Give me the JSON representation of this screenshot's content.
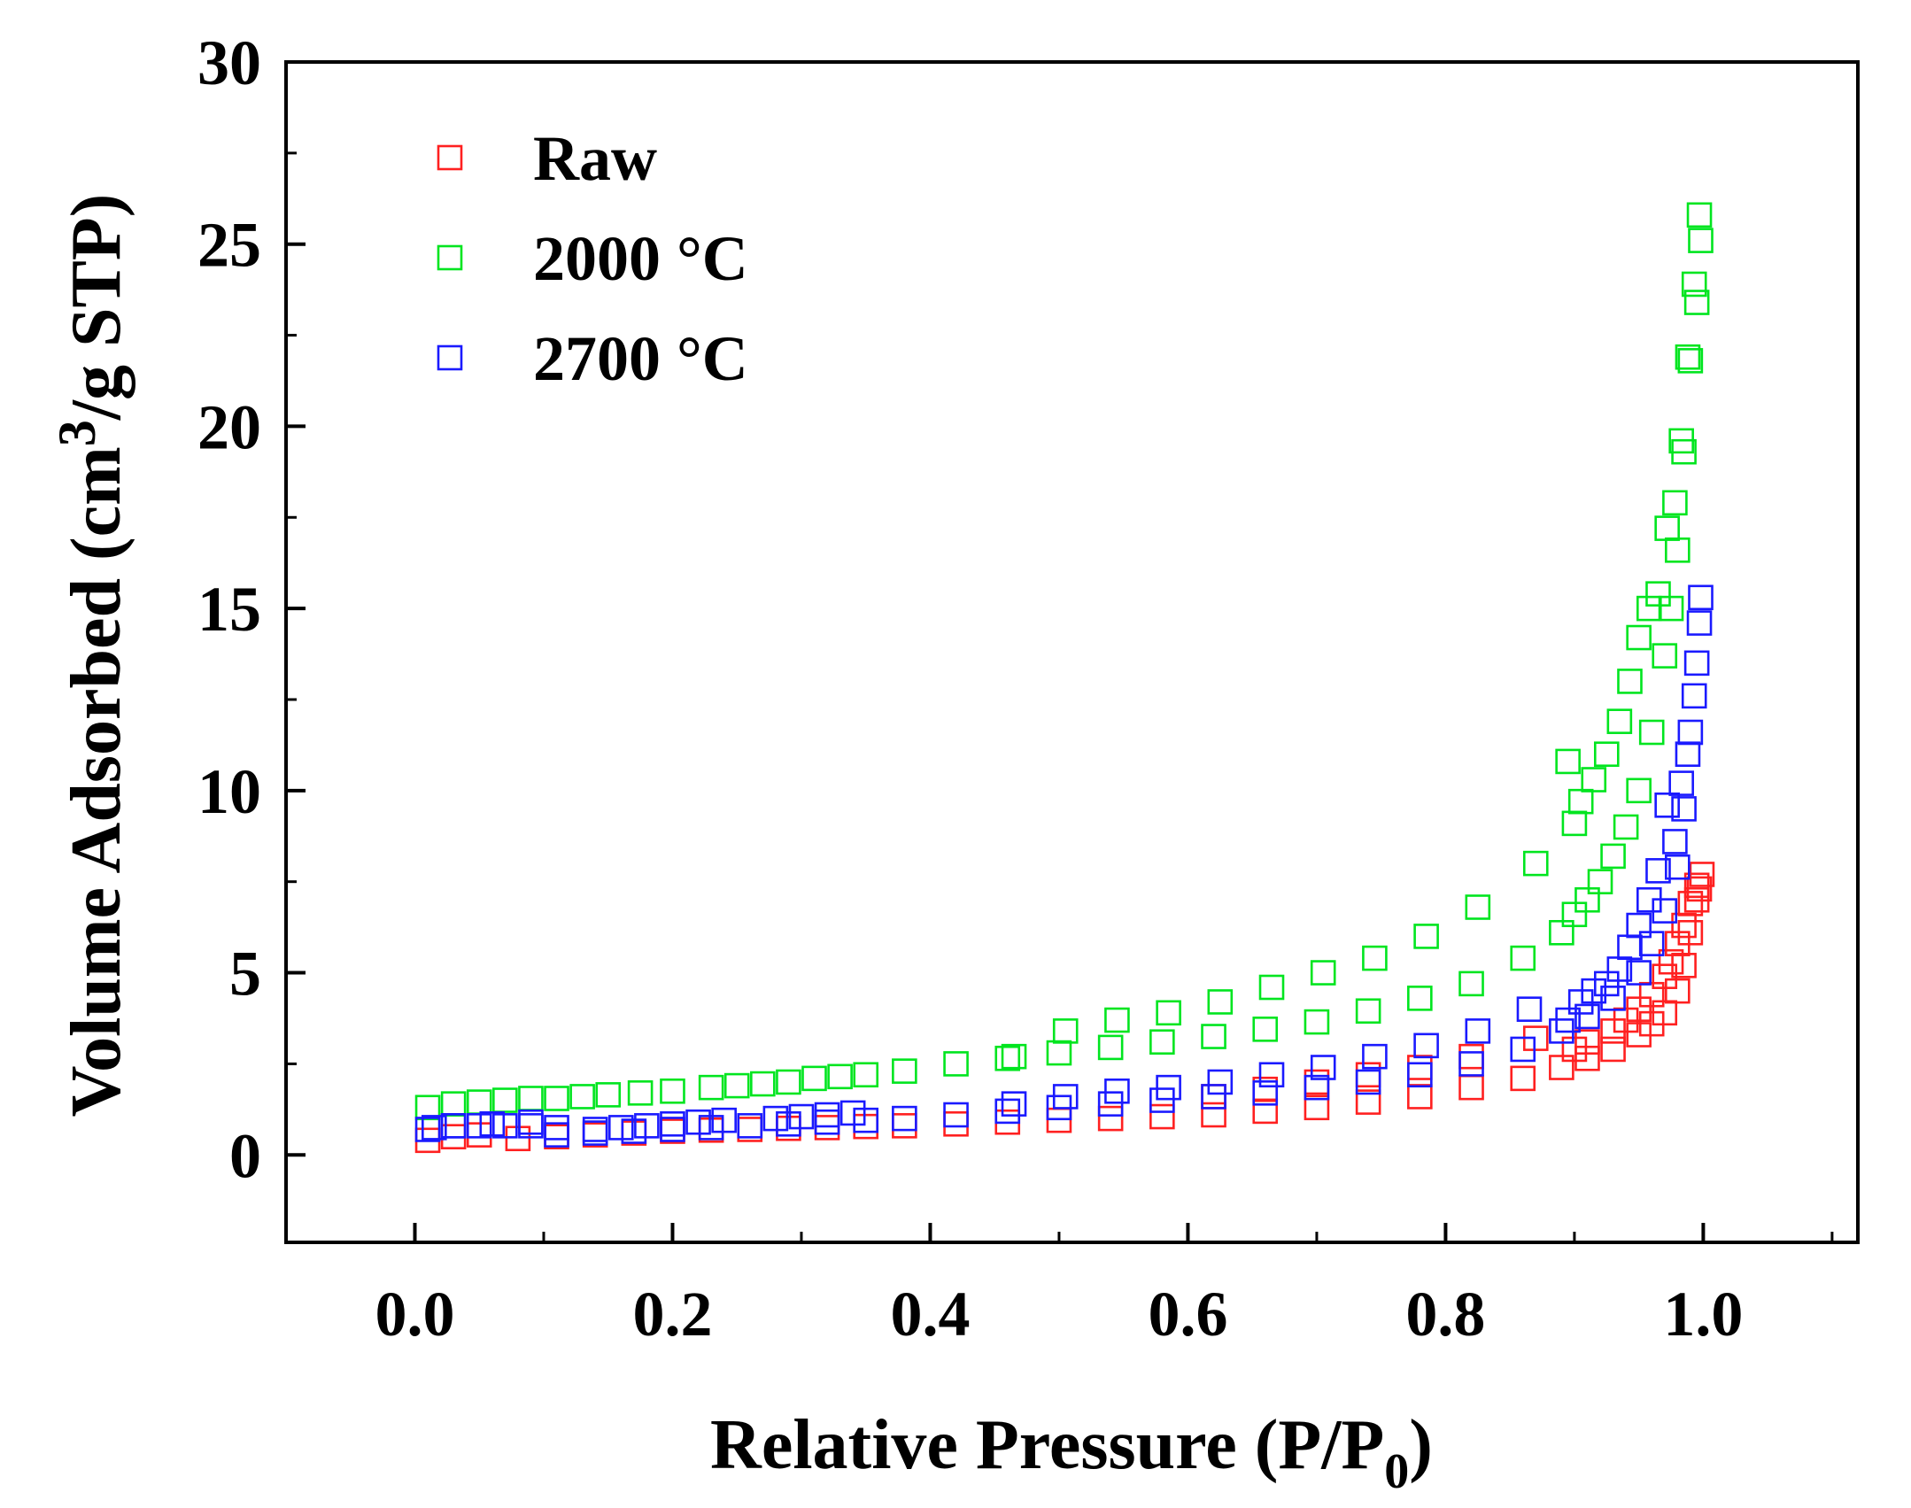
{
  "chart_data": {
    "type": "scatter",
    "title": "",
    "xlabel": "Relative Pressure (P/P",
    "xlabel_sub": "0",
    "xlabel_end": ")",
    "ylabel": "Volume Adsorbed (cm",
    "ylabel_sup": "3",
    "ylabel_end": "/g STP)",
    "xlim": [
      -0.1,
      1.12
    ],
    "ylim": [
      -2.4,
      30
    ],
    "xticks": [
      0.0,
      0.2,
      0.4,
      0.6,
      0.8,
      1.0
    ],
    "xtick_labels": [
      "0.0",
      "0.2",
      "0.4",
      "0.6",
      "0.8",
      "1.0"
    ],
    "yticks": [
      0,
      5,
      10,
      15,
      20,
      25,
      30
    ],
    "ytick_labels": [
      "0",
      "5",
      "10",
      "15",
      "20",
      "25",
      "30"
    ],
    "legend_position": "top-left",
    "series": [
      {
        "name": "Raw",
        "color": "#ff2020",
        "x": [
          0.01,
          0.03,
          0.05,
          0.08,
          0.11,
          0.14,
          0.17,
          0.2,
          0.23,
          0.26,
          0.29,
          0.32,
          0.35,
          0.38,
          0.42,
          0.46,
          0.5,
          0.54,
          0.58,
          0.62,
          0.66,
          0.7,
          0.74,
          0.78,
          0.82,
          0.86,
          0.89,
          0.91,
          0.93,
          0.95,
          0.96,
          0.97,
          0.98,
          0.985,
          0.99,
          0.995,
          0.997,
          0.999,
          0.995,
          0.99,
          0.985,
          0.98,
          0.975,
          0.97,
          0.96,
          0.95,
          0.94,
          0.93,
          0.91,
          0.9,
          0.87,
          0.82,
          0.78,
          0.74,
          0.7,
          0.66,
          0.62
        ],
        "y": [
          0.4,
          0.5,
          0.55,
          0.45,
          0.5,
          0.55,
          0.6,
          0.65,
          0.68,
          0.7,
          0.73,
          0.75,
          0.78,
          0.8,
          0.85,
          0.9,
          0.95,
          1.0,
          1.05,
          1.1,
          1.2,
          1.3,
          1.45,
          1.6,
          1.85,
          2.1,
          2.4,
          2.65,
          2.9,
          3.3,
          3.6,
          3.9,
          4.5,
          5.2,
          6.1,
          7.0,
          7.3,
          7.7,
          7.4,
          6.9,
          6.3,
          5.8,
          5.3,
          4.9,
          4.4,
          4.0,
          3.7,
          3.4,
          3.1,
          2.9,
          3.2,
          2.7,
          2.4,
          2.2,
          2.0,
          1.8,
          1.6
        ]
      },
      {
        "name": "2000 °C",
        "color": "#00e51f",
        "x": [
          0.01,
          0.03,
          0.05,
          0.07,
          0.09,
          0.11,
          0.13,
          0.15,
          0.175,
          0.2,
          0.23,
          0.25,
          0.27,
          0.29,
          0.31,
          0.33,
          0.35,
          0.38,
          0.42,
          0.46,
          0.5,
          0.54,
          0.58,
          0.62,
          0.66,
          0.7,
          0.74,
          0.78,
          0.82,
          0.86,
          0.89,
          0.9,
          0.91,
          0.92,
          0.93,
          0.94,
          0.95,
          0.96,
          0.97,
          0.975,
          0.98,
          0.985,
          0.99,
          0.995,
          0.998,
          0.997,
          0.993,
          0.988,
          0.983,
          0.978,
          0.972,
          0.965,
          0.958,
          0.95,
          0.943,
          0.935,
          0.925,
          0.915,
          0.905,
          0.9,
          0.895,
          0.87,
          0.825,
          0.785,
          0.745,
          0.705,
          0.665,
          0.625,
          0.585,
          0.545,
          0.505,
          0.465
        ],
        "y": [
          1.3,
          1.4,
          1.45,
          1.5,
          1.55,
          1.55,
          1.6,
          1.65,
          1.7,
          1.75,
          1.85,
          1.9,
          1.95,
          2.0,
          2.1,
          2.15,
          2.2,
          2.3,
          2.5,
          2.65,
          2.8,
          2.95,
          3.1,
          3.25,
          3.45,
          3.65,
          3.95,
          4.3,
          4.7,
          5.4,
          6.1,
          6.6,
          7.0,
          7.5,
          8.2,
          9.0,
          10.0,
          11.6,
          13.7,
          15.0,
          16.6,
          19.3,
          21.8,
          23.4,
          25.1,
          25.8,
          23.9,
          21.9,
          19.6,
          17.9,
          17.2,
          15.4,
          15.0,
          14.2,
          13.0,
          11.9,
          11.0,
          10.3,
          9.7,
          9.1,
          10.8,
          8.0,
          6.8,
          6.0,
          5.4,
          5.0,
          4.6,
          4.2,
          3.9,
          3.7,
          3.4,
          2.7
        ]
      },
      {
        "name": "2700 °C",
        "color": "#1a1aff",
        "x": [
          0.01,
          0.03,
          0.06,
          0.09,
          0.11,
          0.14,
          0.17,
          0.2,
          0.23,
          0.26,
          0.29,
          0.32,
          0.35,
          0.38,
          0.42,
          0.46,
          0.5,
          0.54,
          0.58,
          0.62,
          0.66,
          0.7,
          0.74,
          0.78,
          0.82,
          0.86,
          0.89,
          0.91,
          0.93,
          0.95,
          0.96,
          0.97,
          0.98,
          0.985,
          0.99,
          0.995,
          0.998,
          0.997,
          0.993,
          0.988,
          0.983,
          0.978,
          0.972,
          0.965,
          0.958,
          0.95,
          0.943,
          0.935,
          0.925,
          0.915,
          0.905,
          0.895,
          0.865,
          0.825,
          0.785,
          0.745,
          0.705,
          0.665,
          0.625,
          0.585,
          0.545,
          0.505,
          0.465,
          0.34,
          0.32,
          0.3,
          0.28,
          0.24,
          0.22,
          0.2,
          0.18,
          0.16,
          0.14,
          0.11,
          0.09,
          0.07,
          0.05,
          0.03,
          0.015
        ],
        "y": [
          0.7,
          0.8,
          0.85,
          0.9,
          0.55,
          0.6,
          0.65,
          0.7,
          0.75,
          0.8,
          0.85,
          0.9,
          0.95,
          1.0,
          1.1,
          1.2,
          1.3,
          1.4,
          1.5,
          1.6,
          1.7,
          1.85,
          2.0,
          2.2,
          2.5,
          2.9,
          3.4,
          3.8,
          4.3,
          5.0,
          5.8,
          6.7,
          7.9,
          9.5,
          11.6,
          13.5,
          15.3,
          14.6,
          12.6,
          11.0,
          10.2,
          8.6,
          9.6,
          7.8,
          7.0,
          6.3,
          5.7,
          5.1,
          4.7,
          4.5,
          4.2,
          3.7,
          4.0,
          3.4,
          3.0,
          2.7,
          2.4,
          2.2,
          2.0,
          1.85,
          1.75,
          1.6,
          1.4,
          1.15,
          1.1,
          1.05,
          1.0,
          0.95,
          0.9,
          0.85,
          0.8,
          0.75,
          0.7,
          0.75,
          0.8,
          0.8,
          0.8,
          0.8,
          0.75
        ]
      }
    ]
  }
}
